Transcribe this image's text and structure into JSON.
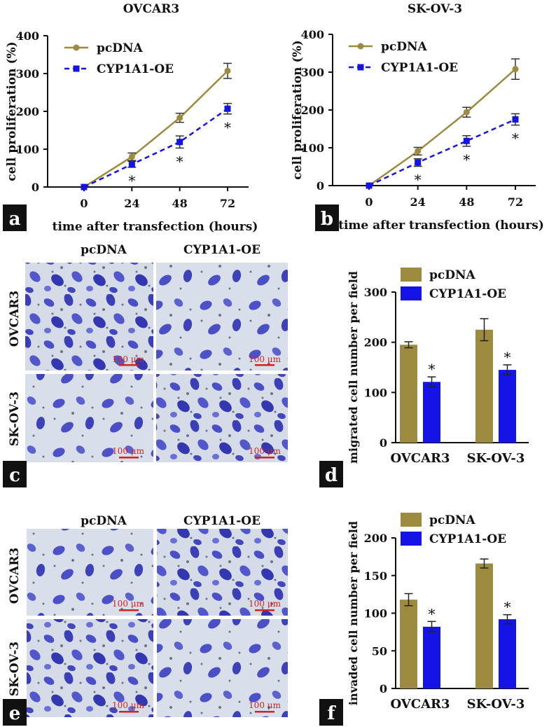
{
  "colors": {
    "pcdna": "#9c8a3e",
    "oe": "#1414e6",
    "axis": "#111111",
    "scale": "#d42020",
    "micro_bg": "#d6dde8",
    "cell": "#3b3fbf"
  },
  "panels": {
    "a": "a",
    "b": "b",
    "c": "c",
    "d": "d",
    "e": "e",
    "f": "f"
  },
  "micrographs": {
    "c": {
      "col_labels": [
        "pcDNA",
        "CYP1A1-OE"
      ],
      "row_labels": [
        "OVCAR3",
        "SK-OV-3"
      ],
      "scale_label": "100 μm"
    },
    "e": {
      "col_labels": [
        "pcDNA",
        "CYP1A1-OE"
      ],
      "row_labels": [
        "OVCAR3",
        "SK-OV-3"
      ],
      "scale_label": "100 μm"
    }
  },
  "chart_data": [
    {
      "id": "a",
      "type": "line",
      "title": "OVCAR3",
      "xlabel": "time after transfection (hours)",
      "ylabel": "cell proliferation (%)",
      "x": [
        0,
        24,
        48,
        72
      ],
      "xticks": [
        "0",
        "24",
        "48",
        "72"
      ],
      "ylim": [
        0,
        400
      ],
      "yticks": [
        "0",
        "100",
        "200",
        "300",
        "400"
      ],
      "series": [
        {
          "name": "pcDNA",
          "values": [
            0,
            80,
            183,
            307
          ],
          "errors": [
            0,
            10,
            12,
            20
          ],
          "sig": [
            false,
            false,
            false,
            false
          ]
        },
        {
          "name": "CYP1A1-OE",
          "values": [
            0,
            60,
            119,
            207
          ],
          "errors": [
            0,
            8,
            16,
            14
          ],
          "sig": [
            false,
            true,
            true,
            true
          ]
        }
      ],
      "sig_label": "*"
    },
    {
      "id": "b",
      "type": "line",
      "title": "SK-OV-3",
      "xlabel": "time after transfection (hours)",
      "ylabel": "cell proliferation (%)",
      "x": [
        0,
        24,
        48,
        72
      ],
      "xticks": [
        "0",
        "24",
        "48",
        "72"
      ],
      "ylim": [
        0,
        400
      ],
      "yticks": [
        "0",
        "100",
        "200",
        "300",
        "400"
      ],
      "series": [
        {
          "name": "pcDNA",
          "values": [
            0,
            91,
            194,
            308
          ],
          "errors": [
            0,
            10,
            13,
            27
          ],
          "sig": [
            false,
            false,
            false,
            false
          ]
        },
        {
          "name": "CYP1A1-OE",
          "values": [
            0,
            61,
            118,
            175
          ],
          "errors": [
            0,
            10,
            14,
            15
          ],
          "sig": [
            false,
            true,
            true,
            true
          ]
        }
      ],
      "sig_label": "*"
    },
    {
      "id": "d",
      "type": "bar",
      "title": "",
      "xlabel": "",
      "ylabel": "migrated cell number per field",
      "categories": [
        "OVCAR3",
        "SK-OV-3"
      ],
      "ylim": [
        0,
        300
      ],
      "yticks": [
        "0",
        "100",
        "200",
        "300"
      ],
      "series": [
        {
          "name": "pcDNA",
          "values": [
            195,
            225
          ],
          "errors": [
            6,
            22
          ],
          "sig": [
            false,
            false
          ]
        },
        {
          "name": "CYP1A1-OE",
          "values": [
            121,
            145
          ],
          "errors": [
            10,
            10
          ],
          "sig": [
            true,
            true
          ]
        }
      ],
      "sig_label": "*"
    },
    {
      "id": "f",
      "type": "bar",
      "title": "",
      "xlabel": "",
      "ylabel": "invaded cell number per field",
      "categories": [
        "OVCAR3",
        "SK-OV-3"
      ],
      "ylim": [
        0,
        200
      ],
      "yticks": [
        "0",
        "50",
        "100",
        "150",
        "200"
      ],
      "series": [
        {
          "name": "pcDNA",
          "values": [
            118,
            166
          ],
          "errors": [
            8,
            6
          ],
          "sig": [
            false,
            false
          ]
        },
        {
          "name": "CYP1A1-OE",
          "values": [
            82,
            92
          ],
          "errors": [
            7,
            6
          ],
          "sig": [
            true,
            true
          ]
        }
      ],
      "sig_label": "*"
    }
  ]
}
